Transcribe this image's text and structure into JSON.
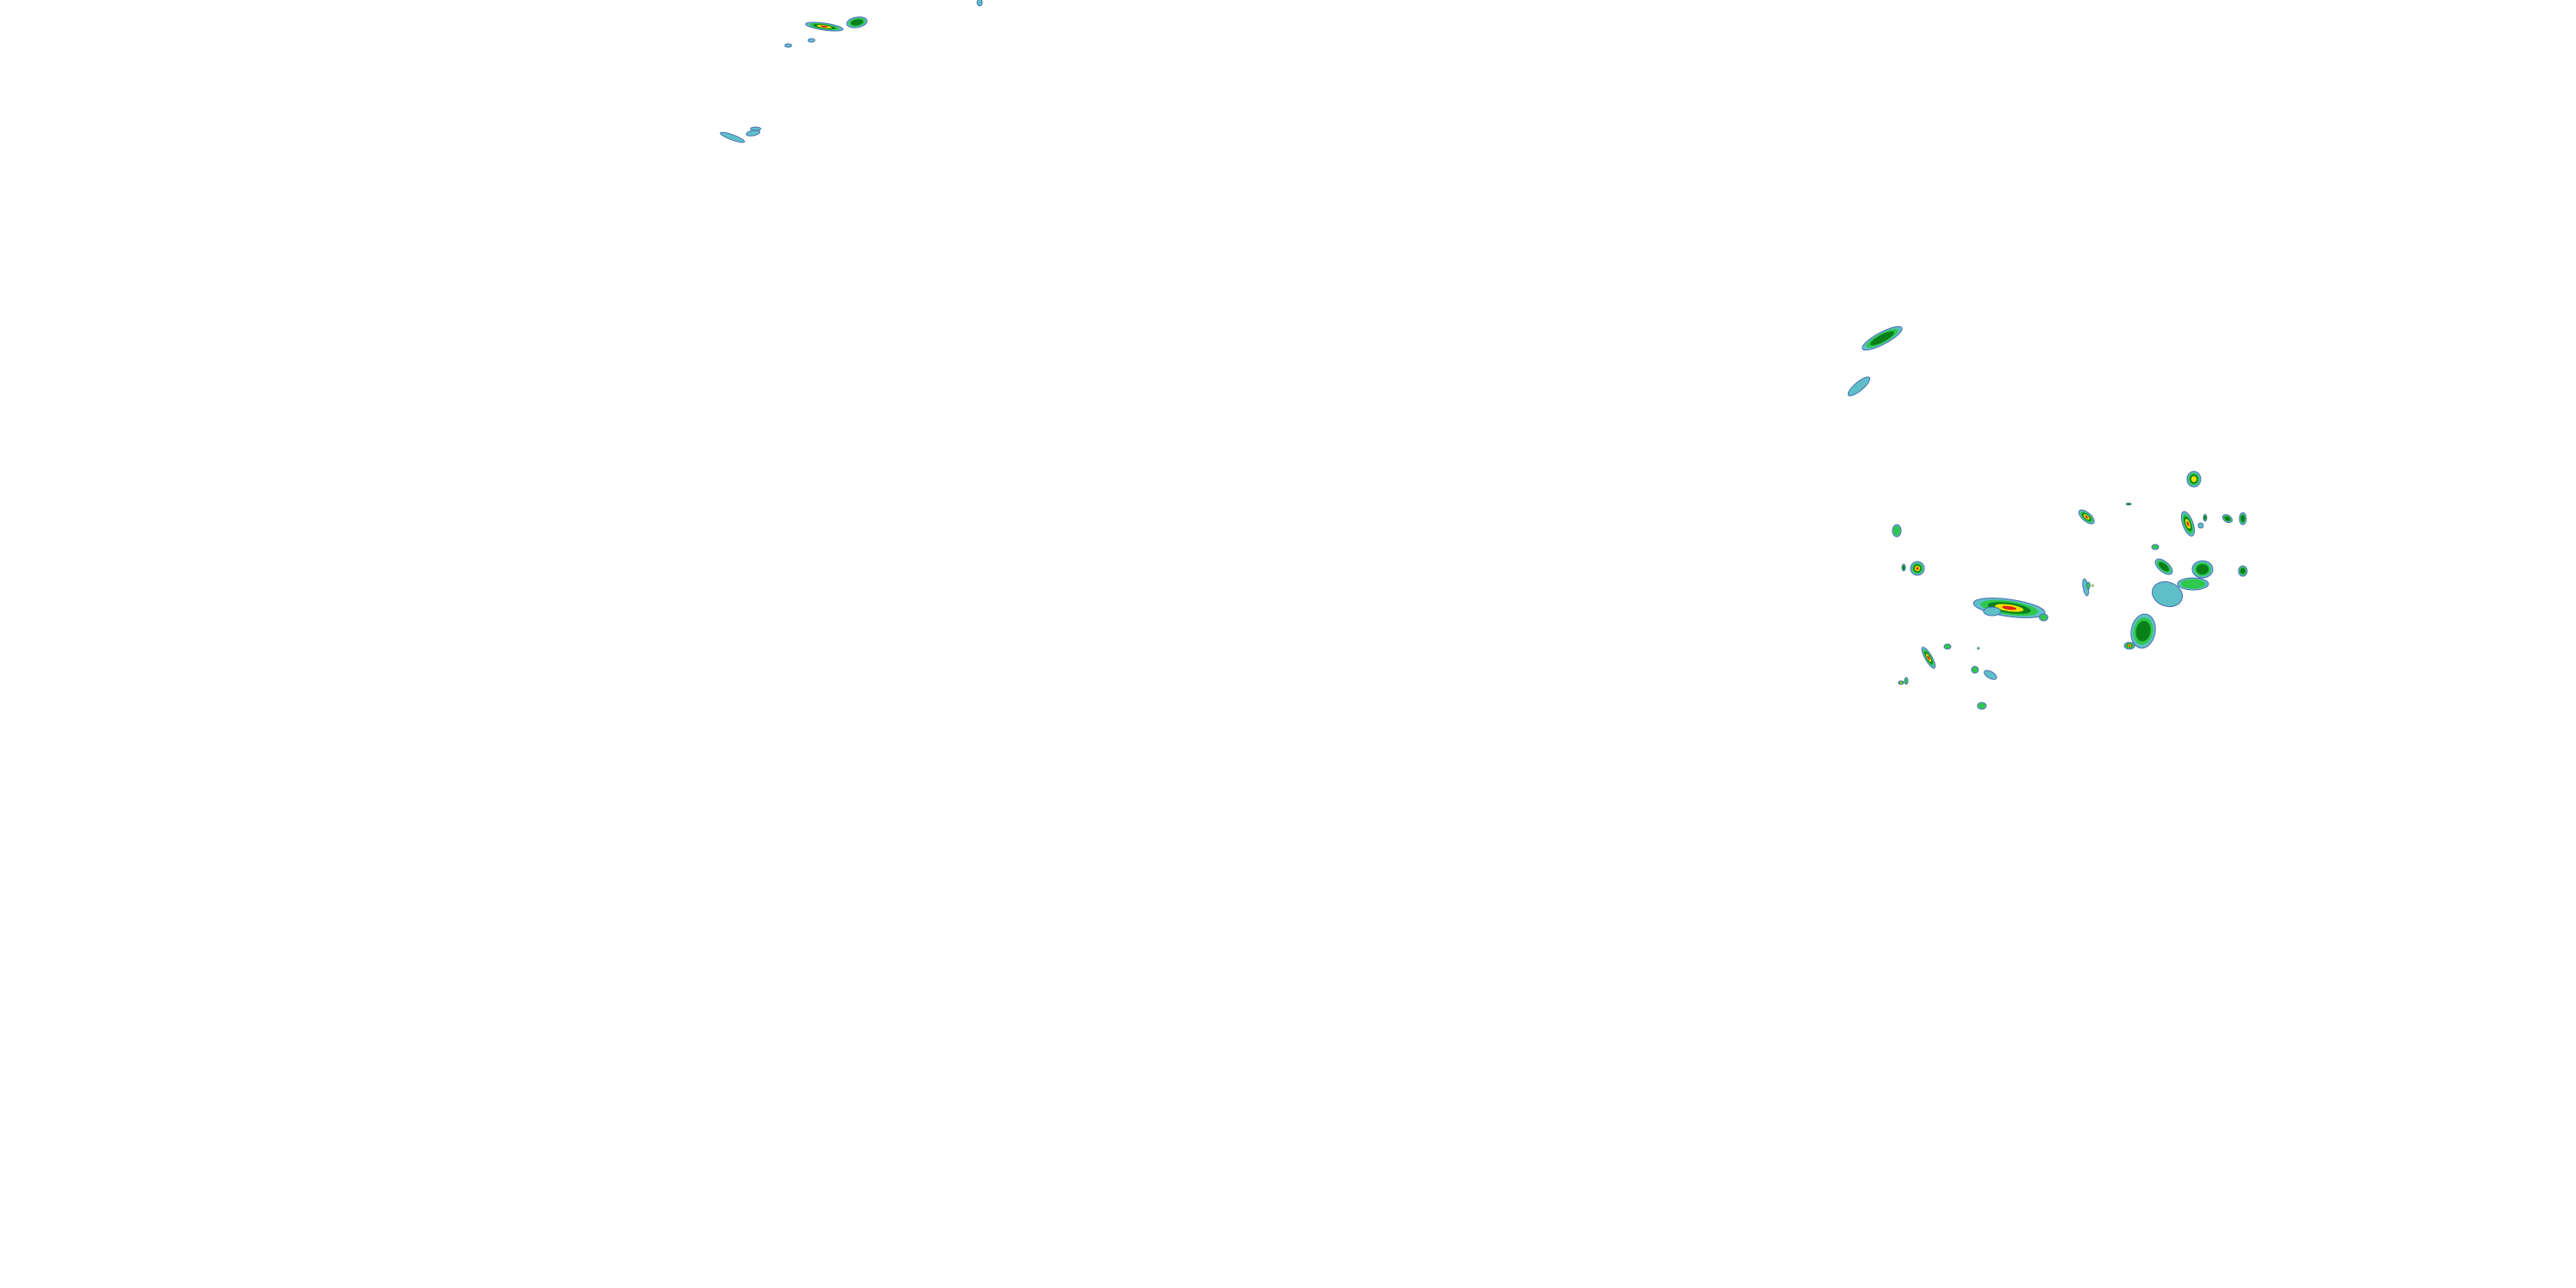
{
  "overlay": {
    "type": "precipitation-radar",
    "colors": {
      "light": "#5fbfc8",
      "edge": "#4a6fb0",
      "moderate": "#2ec84a",
      "heavy": "#0a7f1a",
      "intense": "#f0e000",
      "extreme": "#e02020"
    }
  }
}
